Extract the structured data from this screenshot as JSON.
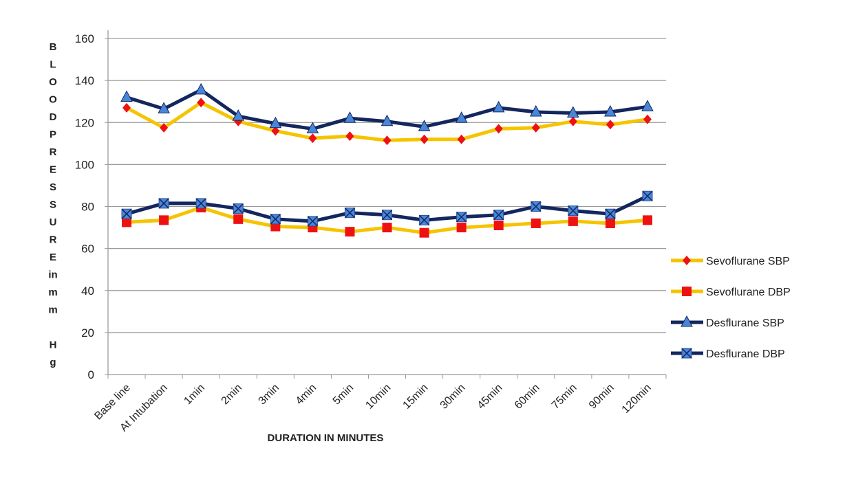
{
  "chart_data": {
    "type": "line",
    "title": "",
    "xlabel": "DURATION IN MINUTES",
    "ylabel_letters": [
      "B",
      "L",
      "O",
      "O",
      "D",
      "P",
      "R",
      "E",
      "S",
      "S",
      "U",
      "R",
      "E",
      "in",
      "m",
      "m",
      "",
      "H",
      "g"
    ],
    "ylabel": "BLOOD PRESSURE in mm Hg",
    "ylim": [
      0,
      160
    ],
    "yticks": [
      0,
      20,
      40,
      60,
      80,
      100,
      120,
      140,
      160
    ],
    "grid": true,
    "legend_position": "right",
    "categories": [
      "Base line",
      "At Intubation",
      "1min",
      "2min",
      "3min",
      "4min",
      "5min",
      "10min",
      "15min",
      "30min",
      "45min",
      "60min",
      "75min",
      "90min",
      "120min"
    ],
    "series": [
      {
        "name": "Sevoflurane SBP",
        "line_color": "#f5c400",
        "marker": "diamond",
        "marker_color": "#ee1111",
        "values": [
          127,
          117.5,
          129.5,
          120.5,
          116,
          112.5,
          113.5,
          111.5,
          112,
          112,
          117,
          117.5,
          120.5,
          119,
          121.5
        ]
      },
      {
        "name": "Sevoflurane DBP",
        "line_color": "#f5c400",
        "marker": "square",
        "marker_color": "#ee1111",
        "values": [
          72.5,
          73.5,
          79.5,
          74,
          70.5,
          70,
          68,
          70,
          67.5,
          70,
          71,
          72,
          73,
          72,
          73.5
        ]
      },
      {
        "name": "Desflurane SBP",
        "line_color": "#13265e",
        "marker": "triangle",
        "marker_color": "#4a86d8",
        "values": [
          132,
          126.5,
          135.5,
          123,
          119.5,
          117,
          122,
          120.5,
          118,
          122,
          127,
          125,
          124.5,
          125,
          127.5
        ]
      },
      {
        "name": "Desflurane DBP",
        "line_color": "#13265e",
        "marker": "x-square",
        "marker_color": "#4a86d8",
        "values": [
          76.5,
          81.5,
          81.5,
          79,
          74,
          73,
          77,
          76,
          73.5,
          75,
          76,
          80,
          78,
          76.5,
          85
        ]
      }
    ]
  }
}
